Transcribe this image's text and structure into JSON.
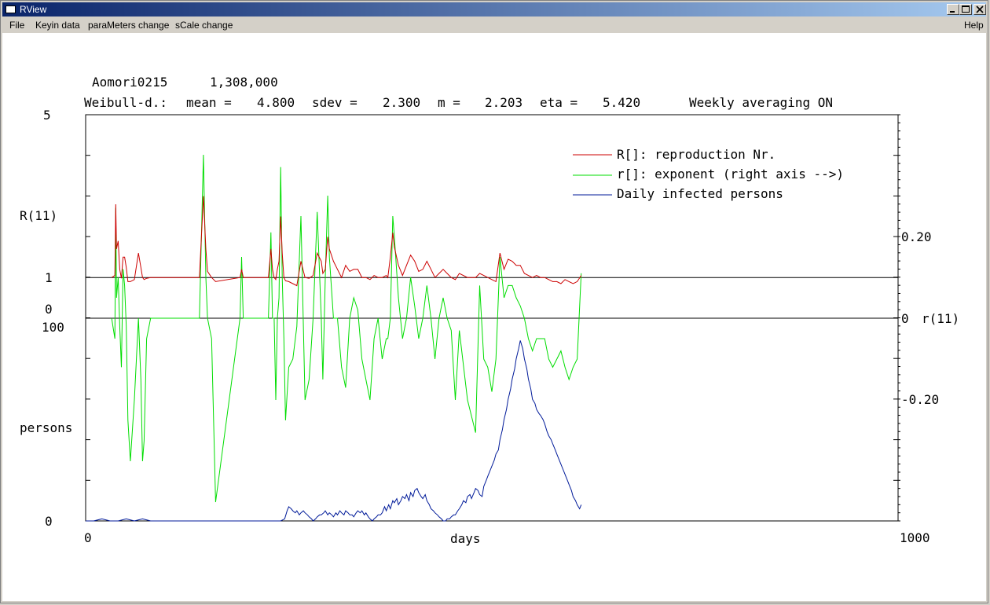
{
  "window": {
    "title": "RView",
    "icon": "app-window-icon"
  },
  "menu": {
    "file": "File",
    "keyin": "Keyin data",
    "parameters": "paraMeters change",
    "scale": "sCale change",
    "help": "Help"
  },
  "header": {
    "region": "Aomori0215",
    "population": "1,308,000",
    "weibull_label": "Weibull-d.:",
    "mean_label": "mean =",
    "mean_value": "4.800",
    "sdev_label": "sdev =",
    "sdev_value": "2.300",
    "m_label": "m =",
    "m_value": "2.203",
    "eta_label": "eta =",
    "eta_value": "5.420",
    "averaging": "Weekly averaging ON"
  },
  "chart_data": {
    "type": "line",
    "xlabel": "days",
    "xlim": [
      0,
      1000
    ],
    "x_ticks": [
      "0",
      "1000"
    ],
    "upper": {
      "left_label": "R(11)",
      "left_ticks": [
        "5",
        "1",
        "0"
      ],
      "ylim": [
        0,
        5
      ],
      "right_label": "r(11)",
      "right_ticks": [
        "0.20",
        "0",
        "-0.20"
      ],
      "right_ylim": [
        -0.4,
        0.4
      ],
      "reference_lines": [
        1,
        0
      ]
    },
    "lower": {
      "left_label": "persons",
      "left_ticks": [
        "100",
        "0"
      ],
      "ylim": [
        0,
        100
      ]
    },
    "legend": {
      "placement": "top-right",
      "entries": [
        "R[]: reproduction Nr.",
        "r[]: exponent (right axis -->)",
        "Daily infected persons"
      ]
    },
    "colors": {
      "R": "#cc0000",
      "r": "#00dd00",
      "daily": "#001a99",
      "axis": "#000000"
    },
    "series": [
      {
        "name": "R[]: reproduction Nr.",
        "x": [
          32,
          36,
          37,
          38,
          40,
          42,
          44,
          46,
          48,
          50,
          52,
          55,
          60,
          65,
          68,
          70,
          72,
          75,
          80,
          85,
          90,
          95,
          140,
          145,
          148,
          150,
          155,
          160,
          190,
          192,
          194,
          196,
          210,
          225,
          228,
          230,
          232,
          234,
          236,
          238,
          240,
          242,
          244,
          246,
          250,
          255,
          260,
          265,
          270,
          275,
          280,
          285,
          290,
          292,
          295,
          298,
          300,
          305,
          310,
          315,
          320,
          325,
          330,
          335,
          340,
          345,
          350,
          355,
          360,
          365,
          370,
          372,
          375,
          378,
          380,
          385,
          390,
          395,
          400,
          405,
          410,
          415,
          420,
          425,
          430,
          435,
          440,
          445,
          450,
          455,
          460,
          470,
          480,
          485,
          490,
          495,
          500,
          505,
          510,
          515,
          520,
          525,
          530,
          535,
          540,
          545,
          550,
          555,
          560,
          565,
          570,
          575,
          580,
          585,
          590,
          595,
          600,
          605,
          610
        ],
        "values": [
          1.0,
          1.05,
          2.8,
          1.7,
          1.9,
          1.2,
          0.98,
          1.5,
          1.5,
          1.25,
          0.9,
          0.9,
          0.95,
          1.6,
          1.25,
          1.0,
          0.95,
          0.98,
          1.0,
          1.0,
          1.0,
          1.0,
          1.0,
          3.0,
          1.7,
          1.15,
          1.0,
          0.9,
          1.0,
          1.2,
          1.0,
          1.0,
          1.0,
          1.0,
          1.7,
          1.2,
          1.0,
          0.95,
          1.2,
          1.4,
          2.5,
          1.6,
          1.0,
          0.92,
          0.9,
          0.85,
          0.8,
          1.4,
          1.0,
          0.98,
          1.05,
          1.6,
          1.4,
          1.1,
          1.2,
          2.0,
          1.7,
          1.4,
          1.2,
          1.0,
          1.3,
          1.15,
          1.2,
          1.2,
          1.0,
          1.0,
          0.95,
          1.05,
          1.0,
          1.0,
          1.05,
          1.0,
          1.5,
          2.1,
          1.75,
          1.3,
          1.05,
          1.3,
          1.55,
          1.4,
          1.15,
          1.2,
          1.4,
          1.2,
          1.0,
          1.1,
          1.2,
          1.1,
          1.0,
          0.95,
          1.1,
          1.0,
          1.0,
          1.1,
          1.05,
          1.0,
          0.95,
          0.9,
          1.6,
          1.2,
          1.45,
          1.4,
          1.3,
          1.3,
          1.1,
          1.05,
          1.0,
          1.05,
          1.0,
          1.0,
          0.95,
          0.9,
          0.9,
          0.85,
          0.95,
          0.9,
          0.85,
          0.9,
          1.05
        ]
      },
      {
        "name": "r[]: exponent (right axis -->)",
        "x": [
          32,
          36,
          37,
          38,
          40,
          42,
          44,
          46,
          48,
          50,
          52,
          55,
          60,
          65,
          68,
          70,
          72,
          75,
          80,
          85,
          90,
          95,
          140,
          145,
          148,
          150,
          155,
          160,
          190,
          192,
          194,
          196,
          210,
          225,
          228,
          230,
          232,
          234,
          236,
          238,
          240,
          242,
          244,
          246,
          250,
          255,
          260,
          265,
          270,
          275,
          280,
          285,
          290,
          292,
          295,
          298,
          300,
          305,
          310,
          315,
          320,
          325,
          330,
          335,
          340,
          345,
          350,
          355,
          360,
          365,
          370,
          372,
          375,
          378,
          380,
          385,
          390,
          395,
          400,
          405,
          410,
          415,
          420,
          425,
          430,
          435,
          440,
          445,
          450,
          455,
          460,
          470,
          480,
          485,
          490,
          495,
          500,
          505,
          510,
          515,
          520,
          525,
          530,
          535,
          540,
          545,
          550,
          555,
          560,
          565,
          570,
          575,
          580,
          585,
          590,
          595,
          600,
          605,
          610
        ],
        "values": [
          0.0,
          -0.05,
          0.27,
          0.05,
          0.1,
          -0.02,
          -0.12,
          0.12,
          0.08,
          -0.02,
          -0.25,
          -0.35,
          -0.2,
          0.0,
          -0.15,
          -0.35,
          -0.3,
          -0.05,
          0.0,
          0.0,
          0.0,
          0.0,
          0.0,
          0.4,
          0.1,
          0.0,
          -0.05,
          -0.45,
          0.0,
          0.15,
          0.0,
          0.0,
          0.0,
          0.0,
          0.21,
          0.0,
          0.0,
          -0.2,
          0.0,
          0.05,
          0.37,
          0.1,
          -0.05,
          -0.25,
          -0.12,
          -0.1,
          -0.02,
          0.25,
          -0.2,
          -0.15,
          0.0,
          0.26,
          0.0,
          -0.15,
          0.1,
          0.3,
          0.15,
          0.0,
          0.0,
          -0.12,
          -0.17,
          0.0,
          0.05,
          0.02,
          -0.1,
          -0.15,
          -0.2,
          -0.05,
          0.0,
          -0.1,
          -0.05,
          -0.05,
          0.0,
          0.25,
          0.2,
          0.05,
          -0.05,
          0.0,
          0.1,
          0.03,
          -0.05,
          0.0,
          0.08,
          0.0,
          -0.1,
          0.0,
          0.05,
          0.0,
          -0.03,
          -0.2,
          -0.03,
          -0.2,
          -0.28,
          0.08,
          -0.1,
          -0.12,
          -0.18,
          -0.1,
          0.15,
          0.05,
          0.08,
          0.08,
          0.05,
          0.03,
          0.0,
          -0.05,
          -0.08,
          -0.05,
          -0.05,
          -0.05,
          -0.1,
          -0.12,
          -0.1,
          -0.08,
          -0.12,
          -0.15,
          -0.12,
          -0.1,
          0.11
        ]
      },
      {
        "name": "Daily infected persons",
        "x": [
          0,
          10,
          20,
          30,
          40,
          50,
          60,
          70,
          80,
          90,
          100,
          200,
          240,
          245,
          248,
          250,
          253,
          255,
          258,
          260,
          263,
          265,
          268,
          270,
          273,
          275,
          278,
          280,
          283,
          285,
          288,
          290,
          293,
          295,
          298,
          300,
          303,
          305,
          308,
          310,
          313,
          315,
          318,
          320,
          323,
          325,
          328,
          330,
          333,
          335,
          338,
          340,
          343,
          345,
          348,
          350,
          353,
          355,
          358,
          360,
          363,
          365,
          368,
          370,
          373,
          375,
          378,
          380,
          383,
          385,
          388,
          390,
          393,
          395,
          398,
          400,
          403,
          405,
          408,
          410,
          413,
          415,
          418,
          420,
          423,
          425,
          428,
          430,
          433,
          435,
          438,
          440,
          443,
          445,
          448,
          450,
          453,
          455,
          458,
          460,
          463,
          465,
          468,
          470,
          473,
          475,
          478,
          480,
          483,
          485,
          488,
          490,
          493,
          495,
          498,
          500,
          503,
          505,
          508,
          510,
          513,
          515,
          518,
          520,
          523,
          525,
          528,
          530,
          533,
          535,
          538,
          540,
          543,
          545,
          548,
          550,
          553,
          555,
          558,
          560,
          563,
          565,
          568,
          570,
          573,
          575,
          578,
          580,
          583,
          585,
          588,
          590,
          593,
          595,
          598,
          600,
          603,
          605,
          608,
          610
        ],
        "values": [
          0,
          0,
          1,
          0,
          0,
          1,
          0,
          1,
          0,
          0,
          0,
          0,
          0,
          1,
          5,
          7,
          6,
          5,
          4,
          5,
          3,
          4,
          5,
          4,
          3,
          2,
          1,
          0,
          1,
          2,
          3,
          3,
          4,
          5,
          3,
          4,
          3,
          2,
          4,
          3,
          5,
          4,
          3,
          5,
          4,
          3,
          3,
          2,
          4,
          5,
          4,
          5,
          3,
          4,
          2,
          1,
          0,
          1,
          2,
          3,
          3,
          4,
          7,
          5,
          8,
          6,
          10,
          9,
          11,
          8,
          10,
          12,
          11,
          13,
          10,
          14,
          12,
          15,
          16,
          14,
          12,
          11,
          13,
          10,
          8,
          6,
          5,
          4,
          3,
          2,
          1,
          0,
          0,
          1,
          1,
          2,
          3,
          3,
          5,
          6,
          8,
          10,
          9,
          12,
          13,
          11,
          14,
          16,
          15,
          13,
          12,
          17,
          20,
          22,
          25,
          27,
          30,
          33,
          35,
          40,
          45,
          50,
          55,
          60,
          65,
          70,
          75,
          80,
          85,
          89,
          85,
          80,
          75,
          70,
          65,
          60,
          58,
          55,
          53,
          52,
          50,
          48,
          44,
          42,
          40,
          38,
          35,
          33,
          30,
          28,
          25,
          23,
          20,
          18,
          15,
          12,
          10,
          8,
          6,
          8
        ]
      }
    ]
  }
}
